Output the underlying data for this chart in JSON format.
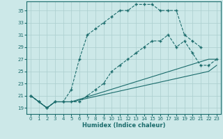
{
  "xlabel": "Humidex (Indice chaleur)",
  "xlim": [
    -0.5,
    23.5
  ],
  "ylim": [
    18,
    36.5
  ],
  "yticks": [
    19,
    21,
    23,
    25,
    27,
    29,
    31,
    33,
    35
  ],
  "xticks": [
    0,
    1,
    2,
    3,
    4,
    5,
    6,
    7,
    8,
    9,
    10,
    11,
    12,
    13,
    14,
    15,
    16,
    17,
    18,
    19,
    20,
    21,
    22,
    23
  ],
  "bg_color": "#cce8e8",
  "grid_color": "#aacece",
  "line_color": "#1a6b6b",
  "line1": {
    "x": [
      0,
      1,
      2,
      3,
      4,
      5,
      6,
      7,
      8,
      9,
      10,
      11,
      12,
      13,
      14,
      15,
      16,
      17,
      18,
      19,
      20,
      21
    ],
    "y": [
      21,
      20,
      19,
      20,
      20,
      22,
      27,
      31,
      32,
      33,
      34,
      35,
      35,
      36,
      36,
      36,
      35,
      35,
      35,
      31,
      30,
      29
    ]
  },
  "line2": {
    "x": [
      0,
      1,
      2,
      3,
      4,
      5,
      6,
      7,
      8,
      9,
      10,
      11,
      12,
      13,
      14,
      15,
      16,
      17,
      18,
      19,
      20,
      21,
      22,
      23
    ],
    "y": [
      21,
      20,
      19,
      20,
      20,
      20,
      20,
      21,
      22,
      23,
      25,
      26,
      27,
      28,
      29,
      30,
      30,
      31,
      29,
      30,
      28,
      26,
      26,
      27
    ]
  },
  "line3": {
    "x": [
      0,
      2,
      3,
      4,
      5,
      22,
      23
    ],
    "y": [
      21,
      19,
      20,
      20,
      20,
      27,
      27
    ]
  },
  "line4": {
    "x": [
      0,
      2,
      3,
      4,
      5,
      22,
      23
    ],
    "y": [
      21,
      19,
      20,
      20,
      20,
      25,
      26
    ]
  }
}
